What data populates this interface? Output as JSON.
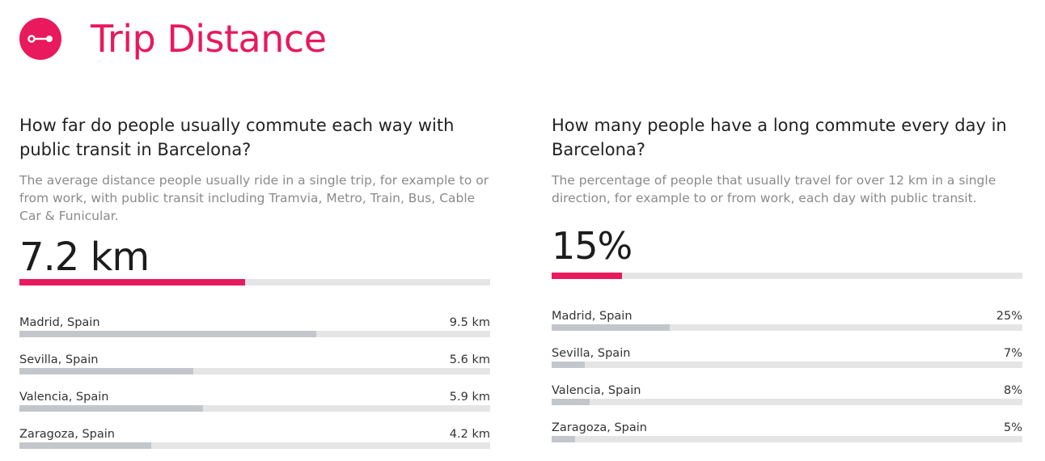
{
  "header": {
    "title": "Trip Distance",
    "icon": "route-icon",
    "accent_color": "#e8195c"
  },
  "left_panel": {
    "question": "How far do people usually commute each way with public transit in Barcelona?",
    "description": "The average distance people usually ride in a single trip, for example to or from work, with public transit including Tramvia, Metro, Train, Bus, Cable Car & Funicular.",
    "value": "7.2 km",
    "value_fraction": 0.48,
    "comparisons": [
      {
        "label": "Madrid, Spain",
        "value": "9.5 km",
        "fraction": 0.63
      },
      {
        "label": "Sevilla, Spain",
        "value": "5.6 km",
        "fraction": 0.37
      },
      {
        "label": "Valencia, Spain",
        "value": "5.9 km",
        "fraction": 0.39
      },
      {
        "label": "Zaragoza, Spain",
        "value": "4.2 km",
        "fraction": 0.28
      }
    ]
  },
  "right_panel": {
    "question": "How many people have a long commute every day in Barcelona?",
    "description": "The percentage of people that usually travel for over 12 km in a single direction, for example to or from work, each day with public transit.",
    "value": "15%",
    "value_fraction": 0.15,
    "comparisons": [
      {
        "label": "Madrid, Spain",
        "value": "25%",
        "fraction": 0.25
      },
      {
        "label": "Sevilla, Spain",
        "value": "7%",
        "fraction": 0.07
      },
      {
        "label": "Valencia, Spain",
        "value": "8%",
        "fraction": 0.08
      },
      {
        "label": "Zaragoza, Spain",
        "value": "5%",
        "fraction": 0.05
      }
    ]
  }
}
